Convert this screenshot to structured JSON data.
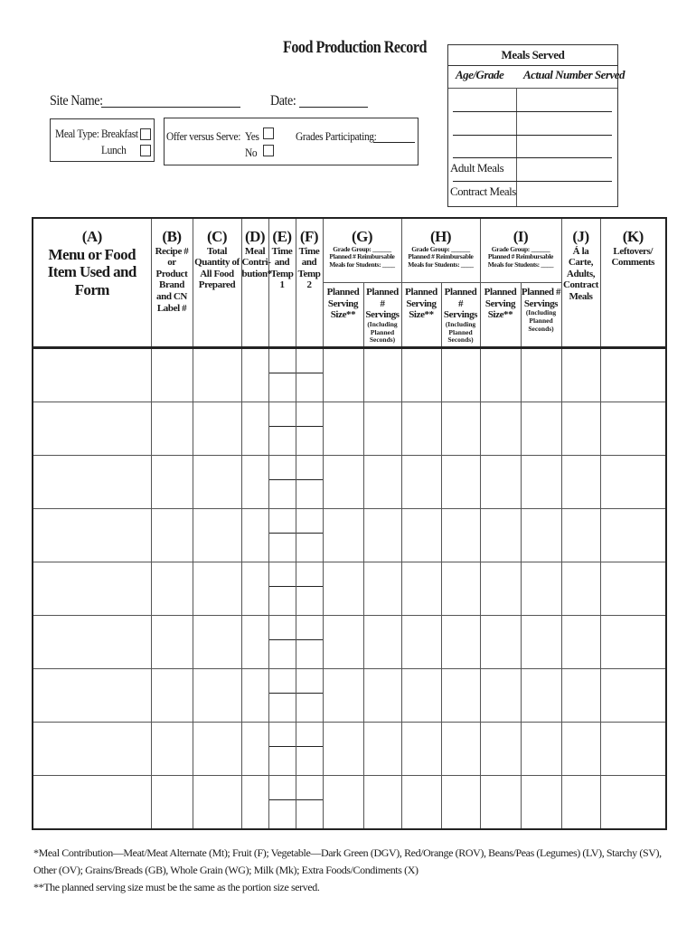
{
  "title": "Food Production Record",
  "site_name_label": "Site Name:",
  "date_label": "Date:",
  "meal_type": {
    "label": "Meal Type:",
    "options": [
      "Breakfast",
      "Lunch"
    ]
  },
  "offer_versus_serve": {
    "label": "Offer versus Serve:",
    "options": [
      "Yes",
      "No"
    ]
  },
  "grades_participating_label": "Grades Participating:",
  "meals_served": {
    "title": "Meals Served",
    "col_age_grade": "Age/Grade",
    "col_actual": "Actual Number Served",
    "rows": [
      "",
      "",
      "",
      "Adult Meals",
      "Contract Meals"
    ]
  },
  "table": {
    "columns": {
      "A": {
        "letter": "(A)",
        "label": "Menu or Food Item Used and Form"
      },
      "B": {
        "letter": "(B)",
        "label": "Recipe # or Product Brand and CN Label #"
      },
      "C": {
        "letter": "(C)",
        "label": "Total Quantity of All Food Prepared"
      },
      "D": {
        "letter": "(D)",
        "label": "Meal Contri-bution*"
      },
      "E": {
        "letter": "(E)",
        "label": "Time and Temp 1"
      },
      "F": {
        "letter": "(F)",
        "label": "Time and Temp 2"
      },
      "G": {
        "letter": "(G)",
        "grade_group": "Grade Group: ______",
        "planned": "Planned # Reimbursable Meals for Students: ____"
      },
      "H": {
        "letter": "(H)",
        "grade_group": "Grade Group: ______",
        "planned": "Planned # Reimbursable Meals for Students: ____"
      },
      "I": {
        "letter": "(I)",
        "grade_group": "Grade Group: ______",
        "planned": "Planned # Reimbursable Meals for Students: ____"
      },
      "J": {
        "letter": "(J)",
        "label": "Á la Carte, Adults, Contract Meals"
      },
      "K": {
        "letter": "(K)",
        "label": "Leftovers/ Comments"
      }
    },
    "sub": {
      "serving_size": "Planned Serving Size**",
      "servings": "Planned # Servings",
      "servings_note": "(Including Planned Seconds)"
    },
    "row_count": 9
  },
  "footnotes": [
    "*Meal Contribution—Meat/Meat Alternate (Mt); Fruit (F); Vegetable—Dark Green (DGV), Red/Orange (ROV), Beans/Peas (Legumes) (LV), Starchy (SV), Other (OV); Grains/Breads (GB), Whole Grain (WG); Milk (Mk); Extra Foods/Condiments (X)",
    "**The planned serving size must be the same as the portion size served."
  ]
}
